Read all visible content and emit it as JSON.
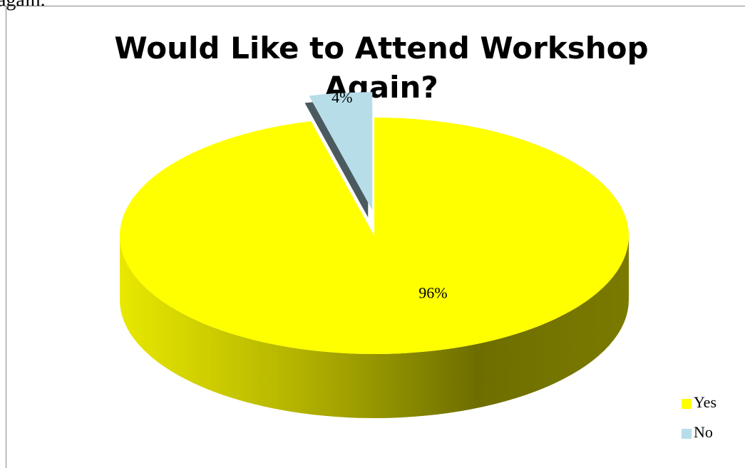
{
  "caption_fragment": "again.",
  "chart_data": {
    "type": "pie",
    "title": "Would Like to Attend Workshop Again?",
    "categories": [
      "Yes",
      "No"
    ],
    "values": [
      96,
      4
    ],
    "value_labels": [
      "96%",
      "4%"
    ],
    "colors": [
      "#ffff00",
      "#b7dde8"
    ],
    "exploded": [
      false,
      true
    ],
    "legend": "right"
  }
}
